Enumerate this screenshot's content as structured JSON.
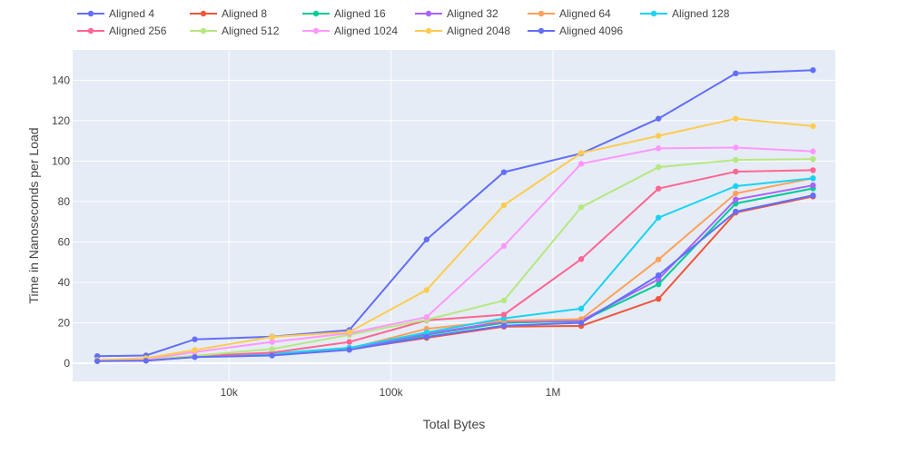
{
  "chart_data": {
    "type": "line",
    "xlabel": "Total Bytes",
    "ylabel": "Time in Nanoseconds per Load",
    "x_scale": "log",
    "x": [
      1536,
      3072,
      6144,
      18432,
      55296,
      165888,
      497664,
      1492992,
      4478976,
      13436928,
      40310784
    ],
    "xticks": [
      {
        "value": 10000,
        "label": "10k"
      },
      {
        "value": 100000,
        "label": "100k"
      },
      {
        "value": 1000000,
        "label": "1M"
      }
    ],
    "yticks": [
      0,
      20,
      40,
      60,
      80,
      100,
      120,
      140
    ],
    "ylim": [
      -9,
      155
    ],
    "grid": true,
    "legend_position": "top",
    "series": [
      {
        "name": "Aligned 4",
        "color": "#636efa",
        "values": [
          3.5,
          3.8,
          11.8,
          13.1,
          16.4,
          61.2,
          94.5,
          103.8,
          121.0,
          143.4,
          145.0
        ]
      },
      {
        "name": "Aligned 8",
        "color": "#EF553B",
        "values": [
          1.2,
          1.3,
          3.3,
          4.1,
          6.8,
          12.5,
          18.1,
          18.4,
          31.8,
          74.5,
          82.5
        ]
      },
      {
        "name": "Aligned 16",
        "color": "#00cc96",
        "values": [
          1.3,
          1.5,
          3.3,
          4.3,
          7.0,
          14.0,
          20.0,
          20.8,
          39.0,
          79.0,
          86.5
        ]
      },
      {
        "name": "Aligned 32",
        "color": "#ab63fa",
        "values": [
          1.3,
          1.6,
          3.4,
          4.4,
          7.1,
          14.5,
          20.5,
          21.0,
          41.5,
          81.0,
          88.0
        ]
      },
      {
        "name": "Aligned 64",
        "color": "#FFA15A",
        "values": [
          1.3,
          1.6,
          3.5,
          4.6,
          7.2,
          17.0,
          21.0,
          21.8,
          51.3,
          84.0,
          91.5
        ]
      },
      {
        "name": "Aligned 128",
        "color": "#19d3f3",
        "values": [
          1.4,
          1.7,
          3.6,
          4.7,
          7.6,
          15.2,
          22.2,
          27.0,
          72.0,
          87.6,
          91.5
        ]
      },
      {
        "name": "Aligned 256",
        "color": "#FF6692",
        "values": [
          1.4,
          1.7,
          3.6,
          5.2,
          10.5,
          21.2,
          24.0,
          51.5,
          86.4,
          94.8,
          95.5
        ]
      },
      {
        "name": "Aligned 512",
        "color": "#B6E880",
        "values": [
          1.4,
          1.8,
          3.7,
          7.0,
          14.0,
          21.5,
          31.0,
          77.2,
          97.0,
          100.6,
          101.0
        ]
      },
      {
        "name": "Aligned 1024",
        "color": "#FF97FF",
        "values": [
          1.5,
          2.0,
          5.5,
          10.5,
          14.8,
          22.8,
          58.0,
          98.7,
          106.3,
          106.7,
          104.8
        ]
      },
      {
        "name": "Aligned 2048",
        "color": "#FECB52",
        "values": [
          1.5,
          2.5,
          6.5,
          13.0,
          15.4,
          36.2,
          78.2,
          104.0,
          112.5,
          121.0,
          117.3
        ]
      },
      {
        "name": "Aligned 4096",
        "color": "#636efa",
        "values": [
          1.0,
          1.2,
          3.0,
          3.8,
          6.6,
          13.0,
          18.5,
          20.0,
          43.5,
          75.0,
          83.0
        ]
      }
    ]
  }
}
